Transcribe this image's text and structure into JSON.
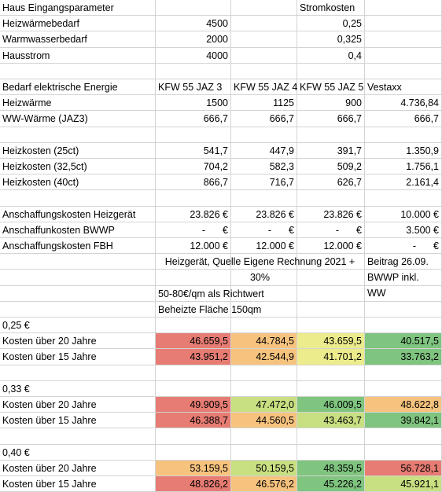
{
  "colors": {
    "red": "#e67c73",
    "orange": "#f6c37f",
    "yellow": "#ecec8c",
    "lightgreen": "#c8df82",
    "green": "#7fc47f"
  },
  "header_row": {
    "a": "Haus Eingangsparameter",
    "d": "Stromkosten"
  },
  "params": [
    {
      "label": "Heizwärmebedarf",
      "value": "4500",
      "strom": "0,25"
    },
    {
      "label": "Warmwasserbedarf",
      "value": "2000",
      "strom": "0,325"
    },
    {
      "label": "Hausstrom",
      "value": "4000",
      "strom": "0,4"
    }
  ],
  "bedarf_header": {
    "label": "Bedarf elektrische Energie",
    "cols": [
      "KFW 55 JAZ 3",
      "KFW 55 JAZ 4",
      "KFW 55 JAZ 5",
      "Vestaxx"
    ]
  },
  "bedarf_rows": [
    {
      "label": "Heizwärme",
      "values": [
        "1500",
        "1125",
        "900",
        "4.736,84"
      ]
    },
    {
      "label": "WW-Wärme (JAZ3)",
      "values": [
        "666,7",
        "666,7",
        "666,7",
        "666,7"
      ]
    }
  ],
  "heiz_rows": [
    {
      "label": "Heizkosten (25ct)",
      "values": [
        "541,7",
        "447,9",
        "391,7",
        "1.350,9"
      ]
    },
    {
      "label": "Heizkosten (32,5ct)",
      "values": [
        "704,2",
        "582,3",
        "509,2",
        "1.756,1"
      ]
    },
    {
      "label": "Heizkosten (40ct)",
      "values": [
        "866,7",
        "716,7",
        "626,7",
        "2.161,4"
      ]
    }
  ],
  "anschaffung_rows": [
    {
      "label": "Anschaffungskosten Heizgerät",
      "values": [
        "23.826 €",
        "23.826 €",
        "23.826 €",
        "10.000 €"
      ]
    },
    {
      "label": "Anschaffunkosten BWWP",
      "values": [
        "- €",
        "- €",
        "- €",
        "3.500 €"
      ]
    },
    {
      "label": "Anschaffungskosten FBH",
      "values": [
        "12.000 €",
        "12.000 €",
        "12.000 €",
        "- €"
      ]
    }
  ],
  "notes": {
    "heizgeraet": "Heizgerät, Quelle Eigene Rechnung 2021 + 30%",
    "beitrag": "Beitrag 26.09. BWWP inkl. WW",
    "richtwert": "50-80€/qm als Richtwert",
    "flaeche": "Beheizte Fläche 150qm"
  },
  "scenarios": [
    {
      "price": "0,25 €",
      "rows": [
        {
          "label": "Kosten über 20 Jahre",
          "values": [
            "46.659,5",
            "44.784,5",
            "43.659,5",
            "40.517,5"
          ],
          "colors": [
            "red",
            "orange",
            "yellow",
            "green"
          ]
        },
        {
          "label": "Kosten über 15 Jahre",
          "values": [
            "43.951,2",
            "42.544,9",
            "41.701,2",
            "33.763,2"
          ],
          "colors": [
            "red",
            "orange",
            "yellow",
            "green"
          ]
        }
      ]
    },
    {
      "price": "0,33 €",
      "rows": [
        {
          "label": "Kosten über 20 Jahre",
          "values": [
            "49.909,5",
            "47.472,0",
            "46.009,5",
            "48.622,8"
          ],
          "colors": [
            "red",
            "lightgreen",
            "green",
            "orange"
          ]
        },
        {
          "label": "Kosten über 15 Jahre",
          "values": [
            "46.388,7",
            "44.560,5",
            "43.463,7",
            "39.842,1"
          ],
          "colors": [
            "red",
            "orange",
            "lightgreen",
            "green"
          ]
        }
      ]
    },
    {
      "price": "0,40 €",
      "rows": [
        {
          "label": "Kosten über 20 Jahre",
          "values": [
            "53.159,5",
            "50.159,5",
            "48.359,5",
            "56.728,1"
          ],
          "colors": [
            "orange",
            "lightgreen",
            "green",
            "red"
          ]
        },
        {
          "label": "Kosten über 15 Jahre",
          "values": [
            "48.826,2",
            "46.576,2",
            "45.226,2",
            "45.921,1"
          ],
          "colors": [
            "red",
            "orange",
            "green",
            "lightgreen"
          ]
        }
      ]
    }
  ]
}
